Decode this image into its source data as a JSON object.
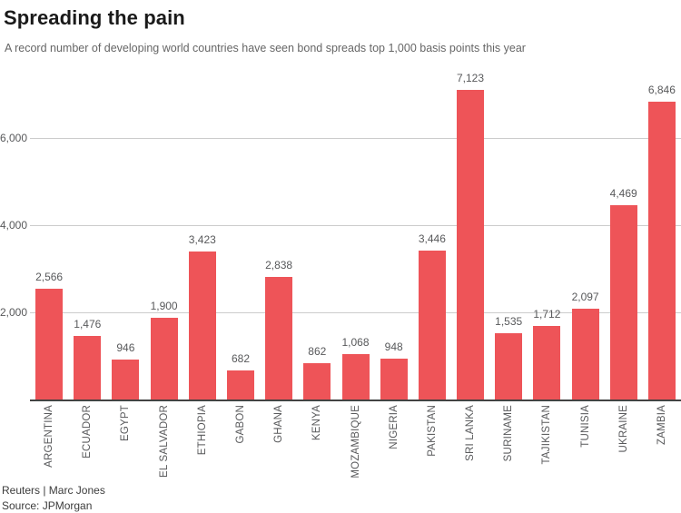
{
  "header": {
    "title": "Spreading the pain",
    "subtitle": "A record number of developing world countries have seen bond spreads top 1,000 basis points this year"
  },
  "footer": {
    "attribution": "Reuters | Marc Jones",
    "source": "Source: JPMorgan"
  },
  "colors": {
    "bar": "#ee5458",
    "gridline": "#cccccc",
    "axis_line": "#434343",
    "tick_text": "#58595b",
    "title_text": "#1a1a1a",
    "subtitle_text": "#666666"
  },
  "chart_data": {
    "type": "bar",
    "title": "Spreading the pain",
    "subtitle": "A record number of developing world countries have seen bond spreads top 1,000 basis points this year",
    "categories": [
      "ARGENTINA",
      "ECUADOR",
      "EGYPT",
      "EL SALVADOR",
      "ETHIOPIA",
      "GABON",
      "GHANA",
      "KENYA",
      "MOZAMBIQUE",
      "NIGERIA",
      "PAKISTAN",
      "SRI LANKA",
      "SURINAME",
      "TAJIKISTAN",
      "TUNISIA",
      "UKRAINE",
      "ZAMBIA"
    ],
    "values": [
      2566,
      1476,
      946,
      1900,
      3423,
      682,
      2838,
      862,
      1068,
      948,
      3446,
      7123,
      1535,
      1712,
      2097,
      4469,
      6846
    ],
    "value_labels": [
      "2,566",
      "1,476",
      "946",
      "1,900",
      "3,423",
      "682",
      "2,838",
      "862",
      "1,068",
      "948",
      "3,446",
      "7,123",
      "1,535",
      "1,712",
      "2,097",
      "4,469",
      "6,846"
    ],
    "xlabel": "",
    "ylabel": "",
    "ylim": [
      0,
      7500
    ],
    "yticks": [
      2000,
      4000,
      6000
    ],
    "ytick_labels": [
      "2,000",
      "4,000",
      "6,000"
    ],
    "grid": true,
    "legend": false,
    "bar_color": "#ee5458",
    "unit": "basis points"
  }
}
